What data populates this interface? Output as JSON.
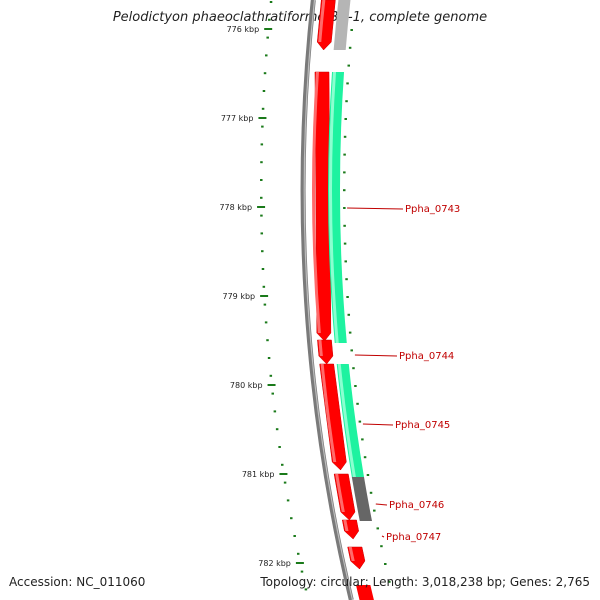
{
  "title": "Pelodictyon phaeoclathratiforme BU-1, complete genome",
  "accession": "Accession: NC_011060",
  "summary": "Topology: circular; Length: 3,018,238 bp; Genes: 2,765",
  "scale": {
    "unit": "kbp",
    "labels": [
      "776 kbp",
      "777 kbp",
      "778 kbp",
      "779 kbp",
      "780 kbp",
      "781 kbp",
      "782 kbp"
    ]
  },
  "gene_labels": [
    "Ppha_0743",
    "Ppha_0744",
    "Ppha_0745",
    "Ppha_0746",
    "Ppha_0747"
  ],
  "colors": {
    "backbone": "#7a7a7a",
    "cds": "#ff0000",
    "gene": "#1ef2a0",
    "other": "#666666",
    "ticks": "#1a7a1a",
    "label": "#c00000"
  }
}
